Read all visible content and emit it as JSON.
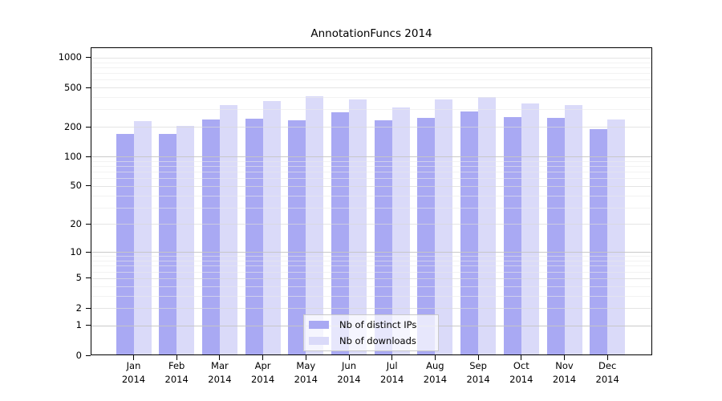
{
  "title": "AnnotationFuncs 2014",
  "chart_data": {
    "type": "bar",
    "title": "AnnotationFuncs 2014",
    "categories": [
      "Jan",
      "Feb",
      "Mar",
      "Apr",
      "May",
      "Jun",
      "Jul",
      "Aug",
      "Sep",
      "Oct",
      "Nov",
      "Dec"
    ],
    "year_label": "2014",
    "series": [
      {
        "name": "Nb of distinct IPs",
        "color": "#a9a9f3",
        "values": [
          170,
          170,
          238,
          242,
          233,
          280,
          231,
          247,
          285,
          252,
          247,
          190
        ]
      },
      {
        "name": "Nb of downloads",
        "color": "#dadaf9",
        "values": [
          228,
          205,
          332,
          364,
          408,
          376,
          313,
          380,
          400,
          343,
          332,
          236
        ]
      }
    ],
    "y_scale": "log1p",
    "ylim": [
      0,
      1270
    ],
    "yticks": [
      0,
      1,
      2,
      5,
      10,
      20,
      50,
      100,
      200,
      500,
      1000
    ],
    "major_gridlines": [
      1,
      10,
      100
    ],
    "minor_gridlines": [
      3,
      4,
      6,
      7,
      8,
      9,
      30,
      40,
      60,
      70,
      80,
      90,
      300,
      400,
      600,
      700,
      800,
      900
    ],
    "grid": true,
    "xlabel": "",
    "ylabel": "",
    "legend_position": "bottom-center",
    "colors": {
      "frame": "#000000",
      "text": "#000000",
      "grid_minor": "#eaeaea",
      "grid_tick": "#d9d9d9",
      "grid_major": "#c2c2c2",
      "legend_border": "#c9c9c9"
    }
  }
}
